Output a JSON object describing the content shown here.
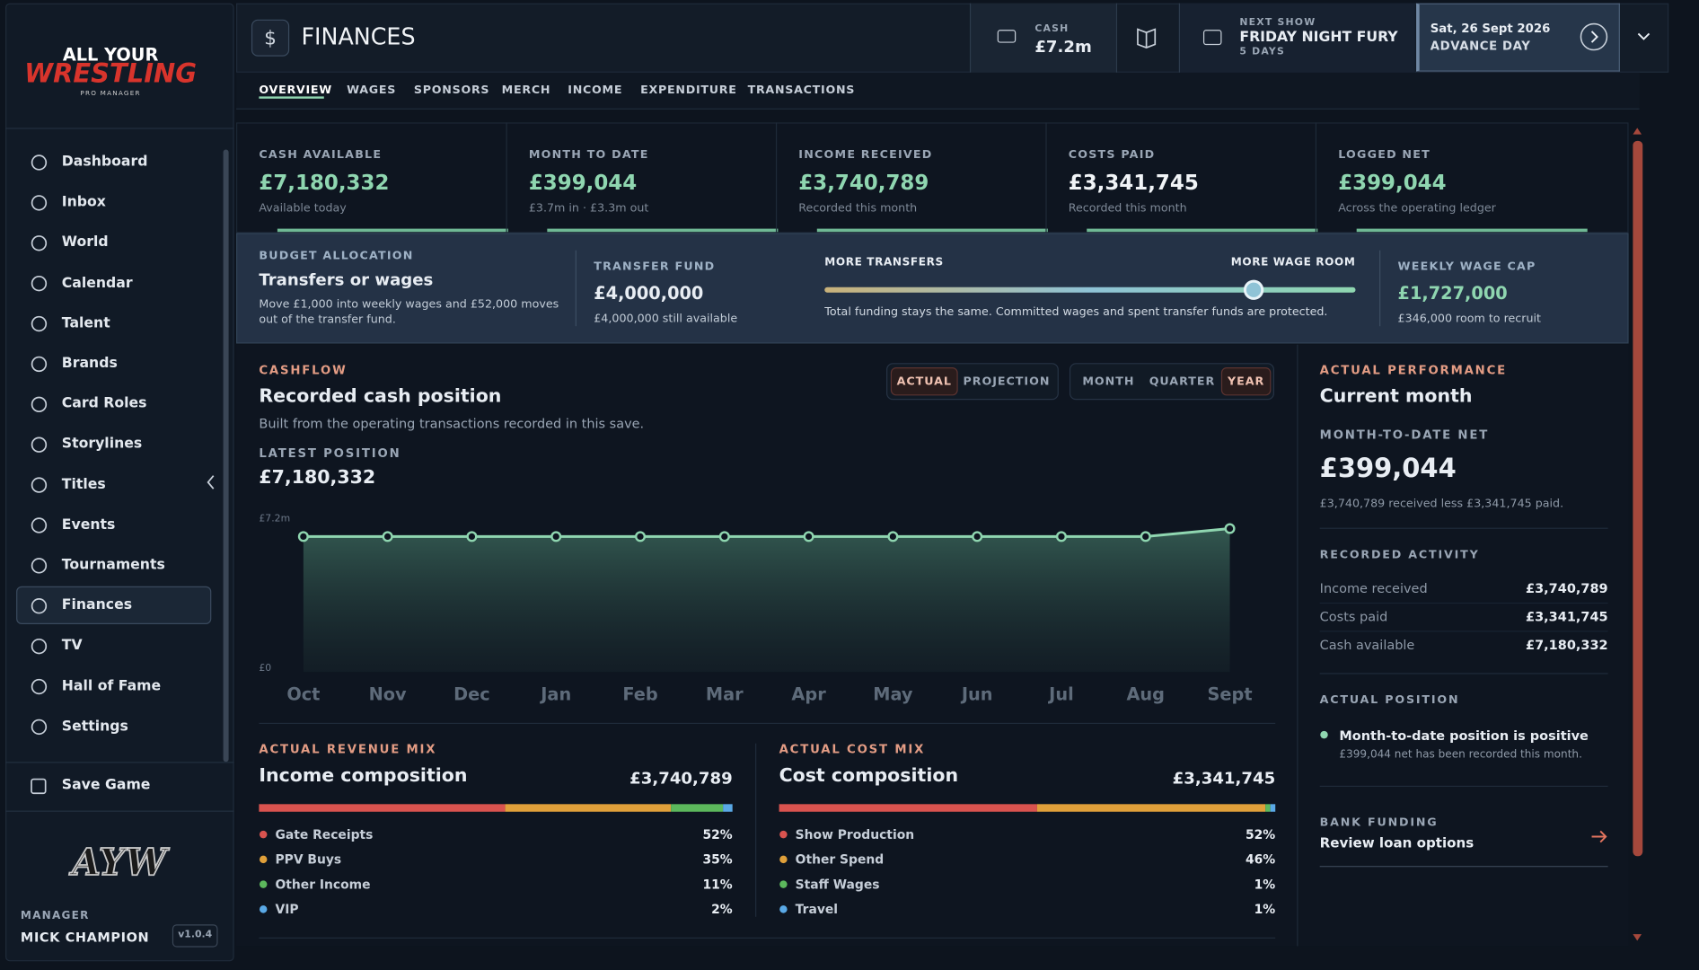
{
  "sidebar": {
    "logo": {
      "line1": "ALL YOUR",
      "line2": "WRESTLING",
      "line3": "PRO MANAGER"
    },
    "nav": [
      "Dashboard",
      "Inbox",
      "World",
      "Calendar",
      "Talent",
      "Brands",
      "Card Roles",
      "Storylines",
      "Titles",
      "Events",
      "Tournaments",
      "Finances",
      "TV",
      "Hall of Fame",
      "Settings"
    ],
    "active_nav": "Finances",
    "save": "Save Game",
    "badge": "AYW",
    "manager_label": "MANAGER",
    "manager_name": "MICK CHAMPION",
    "version": "v1.0.4"
  },
  "header": {
    "title": "FINANCES",
    "cash_label": "CASH",
    "cash_value": "£7.2m",
    "next_show_label": "NEXT SHOW",
    "next_show": "FRIDAY NIGHT FURY",
    "next_show_in": "5 DAYS",
    "date": "Sat, 26 Sept 2026",
    "advance": "ADVANCE DAY"
  },
  "tabs": {
    "items": [
      "OVERVIEW",
      "WAGES",
      "SPONSORS",
      "MERCH",
      "INCOME",
      "EXPENDITURE",
      "TRANSACTIONS"
    ],
    "active": "OVERVIEW"
  },
  "stats": [
    {
      "label": "CASH AVAILABLE",
      "value": "£7,180,332",
      "sub": "Available today",
      "color": "#8fd6b0"
    },
    {
      "label": "MONTH TO DATE",
      "value": "£399,044",
      "sub": "£3.7m in · £3.3m out",
      "color": "#8fd6b0"
    },
    {
      "label": "INCOME RECEIVED",
      "value": "£3,740,789",
      "sub": "Recorded this month",
      "color": "#8fd6b0"
    },
    {
      "label": "COSTS PAID",
      "value": "£3,341,745",
      "sub": "Recorded this month",
      "color": "#f1f4f7"
    },
    {
      "label": "LOGGED NET",
      "value": "£399,044",
      "sub": "Across the operating ledger",
      "color": "#8fd6b0"
    }
  ],
  "budget": {
    "label": "BUDGET ALLOCATION",
    "title": "Transfers or wages",
    "desc": "Move £1,000 into weekly wages and £52,000 moves out of the transfer fund.",
    "fund_label": "TRANSFER FUND",
    "fund_value": "£4,000,000",
    "fund_sub": "£4,000,000 still available",
    "left_label": "MORE TRANSFERS",
    "right_label": "MORE WAGE ROOM",
    "note": "Total funding stays the same. Committed wages and spent transfer funds are protected.",
    "cap_label": "WEEKLY WAGE CAP",
    "cap_value": "£1,727,000",
    "cap_sub": "£346,000 room to recruit"
  },
  "cashflow": {
    "label": "CASHFLOW",
    "title": "Recorded cash position",
    "subtitle": "Built from the operating transactions recorded in this save.",
    "modes": [
      "ACTUAL",
      "PROJECTION"
    ],
    "active_mode": "ACTUAL",
    "ranges": [
      "MONTH",
      "QUARTER",
      "YEAR"
    ],
    "active_range": "YEAR",
    "latest_label": "LATEST POSITION",
    "latest_value": "£7,180,332",
    "chart": {
      "type": "line",
      "categories": [
        "Oct",
        "Nov",
        "Dec",
        "Jan",
        "Feb",
        "Mar",
        "Apr",
        "May",
        "Jun",
        "Jul",
        "Aug",
        "Sept"
      ],
      "values": [
        6781288,
        6781288,
        6781288,
        6781288,
        6781288,
        6781288,
        6781288,
        6781288,
        6781288,
        6781288,
        6781288,
        7180332
      ],
      "color": "#8fd6b0",
      "ylim": [
        0,
        7600000
      ],
      "yticks": [
        {
          "value": 0,
          "label": "£0"
        },
        {
          "value": 7200000,
          "label": "£7.2m"
        }
      ]
    }
  },
  "revenue_mix": {
    "label": "ACTUAL REVENUE MIX",
    "title": "Income composition",
    "total": "£3,740,789",
    "categories": [
      "Gate Receipts",
      "PPV Buys",
      "Other Income",
      "VIP"
    ],
    "colors": [
      "#d9534f",
      "#e0a03a",
      "#5cb85c",
      "#5aa9e6"
    ],
    "values": [
      52,
      35,
      11,
      2
    ],
    "value_labels": [
      "52%",
      "35%",
      "11%",
      "2%"
    ]
  },
  "cost_mix": {
    "label": "ACTUAL COST MIX",
    "title": "Cost composition",
    "total": "£3,341,745",
    "categories": [
      "Show Production",
      "Other Spend",
      "Staff Wages",
      "Travel"
    ],
    "colors": [
      "#d9534f",
      "#e0a03a",
      "#5cb85c",
      "#5aa9e6"
    ],
    "values": [
      52,
      46,
      1,
      1
    ],
    "value_labels": [
      "52%",
      "46%",
      "1%",
      "1%"
    ]
  },
  "performance": {
    "label": "ACTUAL PERFORMANCE",
    "title": "Current month",
    "net_label": "MONTH-TO-DATE NET",
    "net_value": "£399,044",
    "net_sub": "£3,740,789 received less £3,341,745 paid.",
    "activity_label": "RECORDED ACTIVITY",
    "activity": [
      {
        "name": "Income received",
        "value": "£3,740,789"
      },
      {
        "name": "Costs paid",
        "value": "£3,341,745"
      },
      {
        "name": "Cash available",
        "value": "£7,180,332"
      }
    ],
    "position_label": "ACTUAL POSITION",
    "position_title": "Month-to-date position is positive",
    "position_sub": "£399,044 net has been recorded this month.",
    "bank_label": "BANK FUNDING",
    "bank_action": "Review loan options"
  }
}
